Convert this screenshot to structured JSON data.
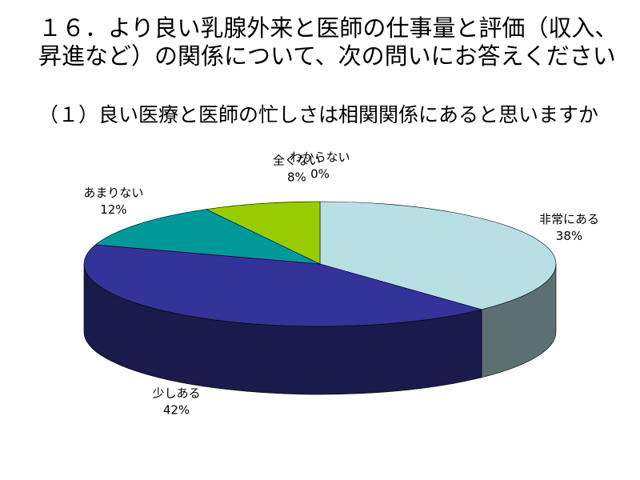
{
  "chart_data": {
    "type": "pie",
    "title": "１６．より良い乳腺外来と医師の仕事量と評価（収入、昇進など）の関係について、次の問いにお答えください",
    "subtitle": "（１）良い医療と医師の忙しさは相関関係にあると思いますか",
    "categories": [
      "非常にある",
      "少しある",
      "あまりない",
      "全くない",
      "わからない"
    ],
    "values": [
      38,
      42,
      12,
      8,
      0
    ],
    "value_labels": [
      "38%",
      "42%",
      "12%",
      "8%",
      "0%"
    ],
    "colors": [
      "#b8e0e4",
      "#333399",
      "#009999",
      "#99cc00",
      "#ffff99"
    ]
  }
}
